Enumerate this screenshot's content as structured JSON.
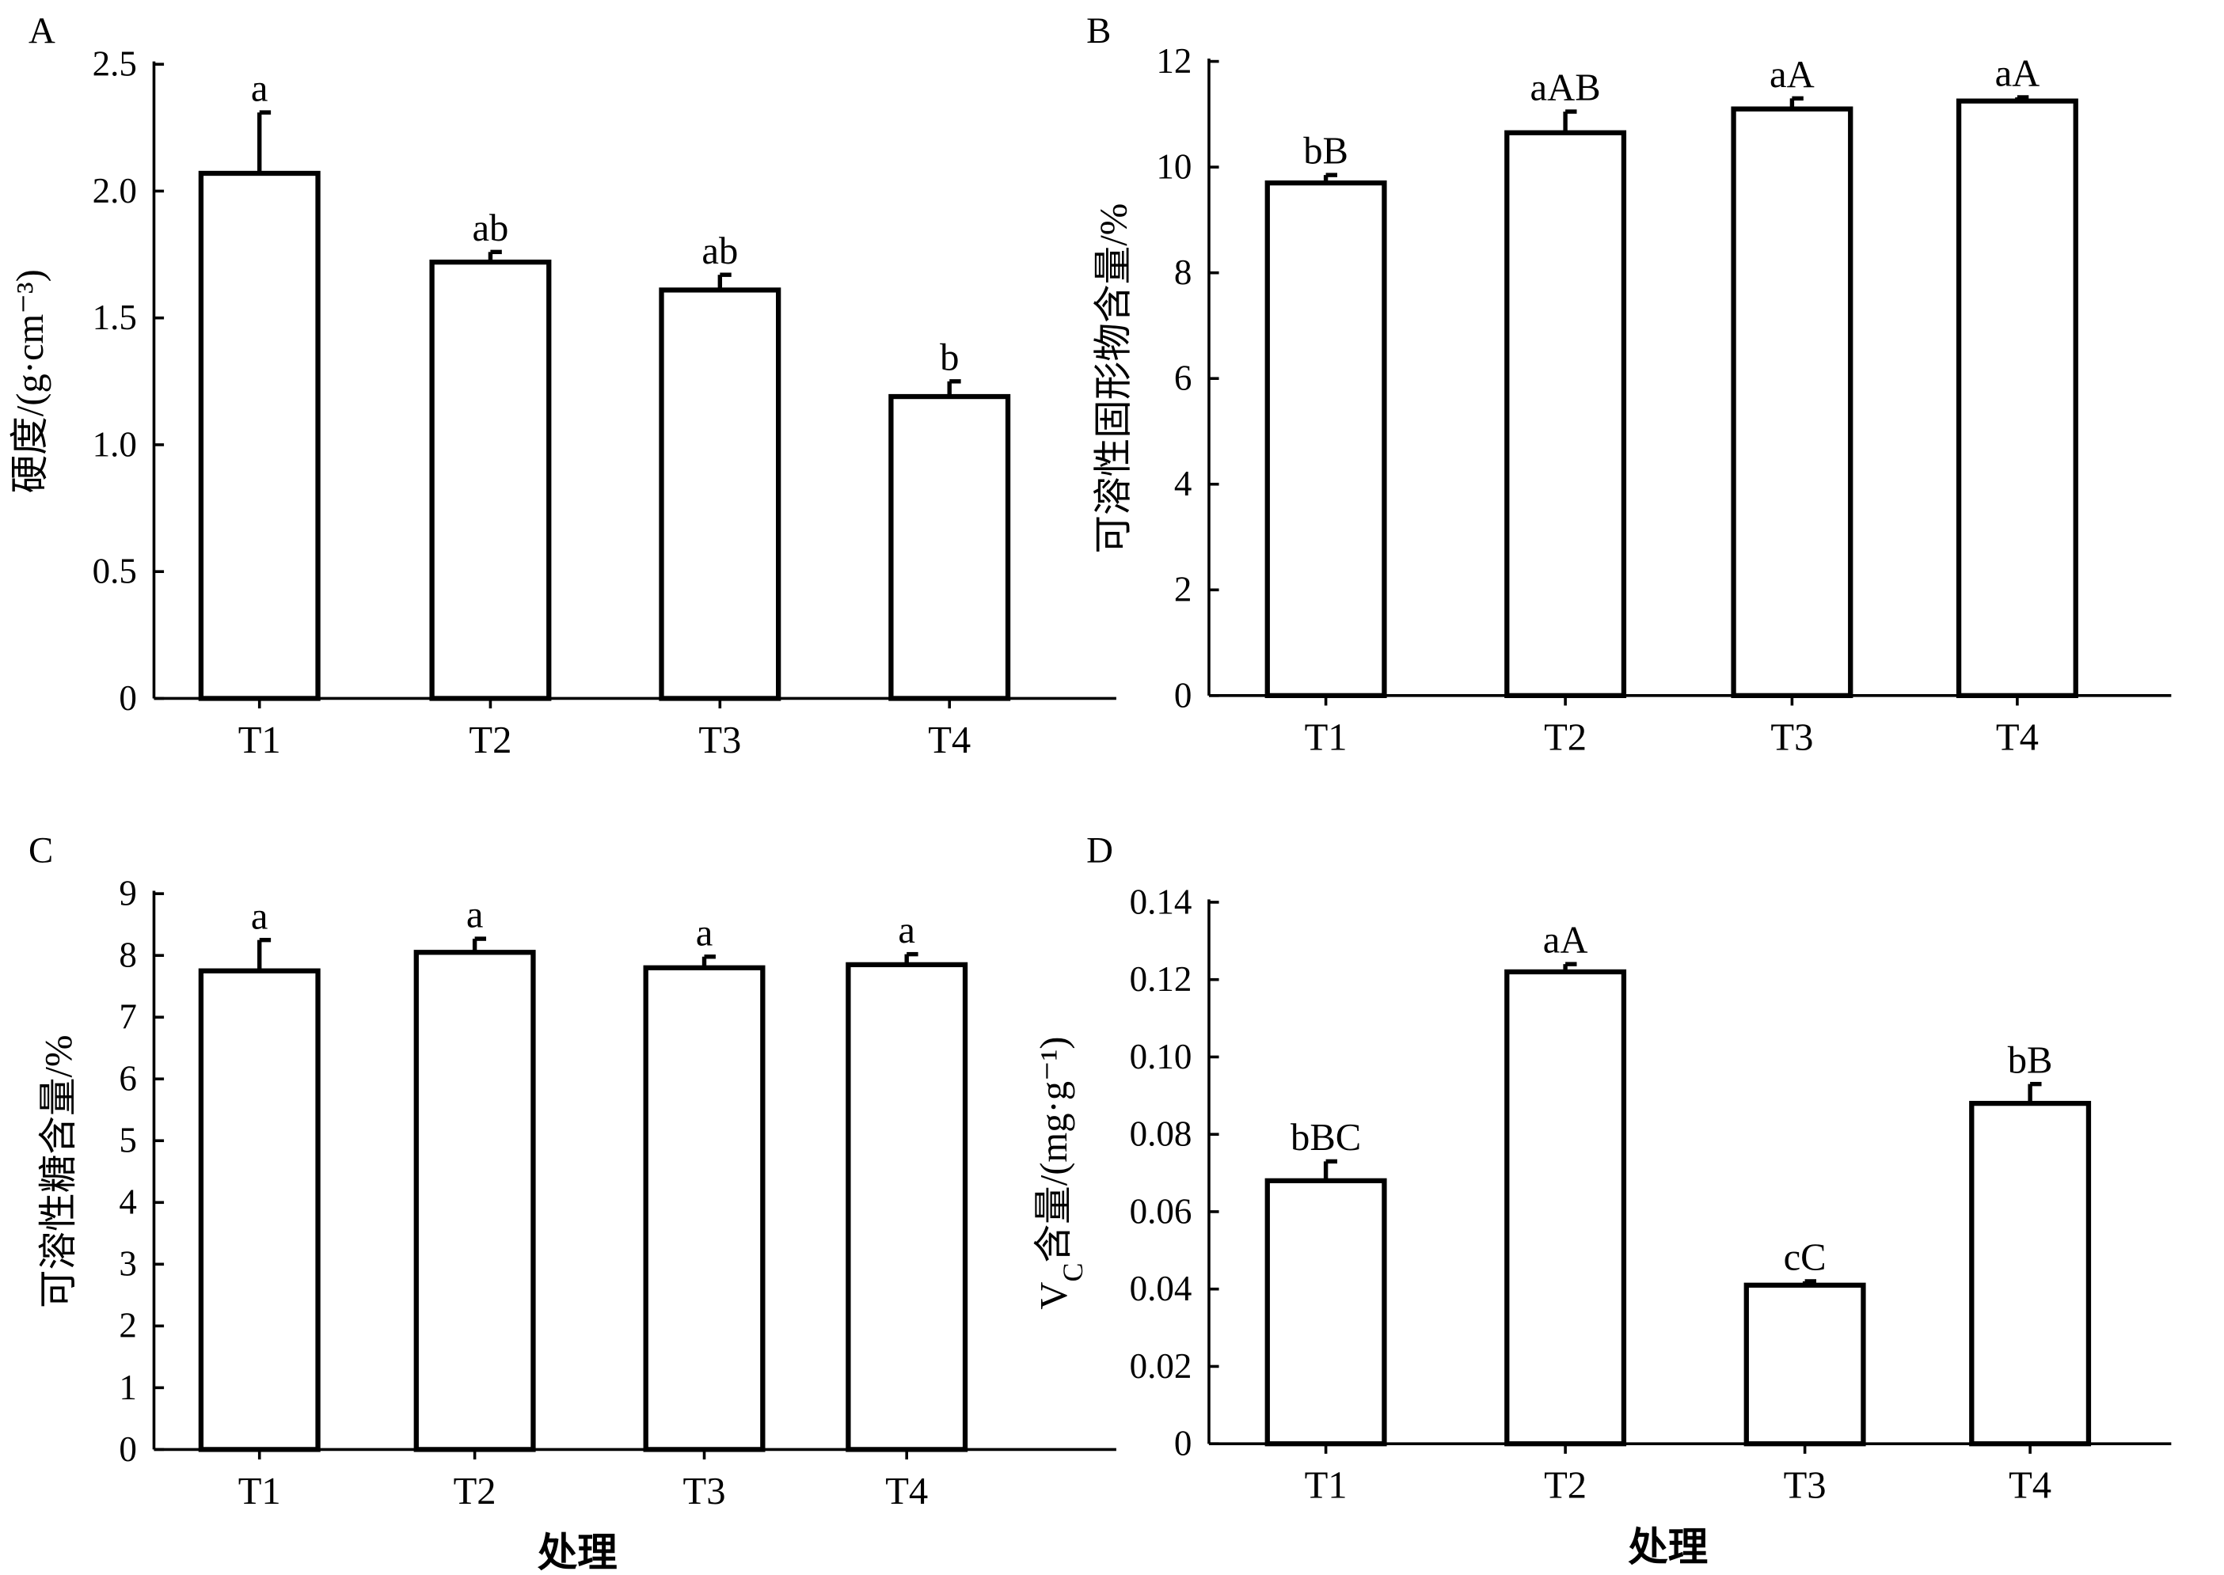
{
  "chart_data": [
    {
      "panel": "A",
      "type": "bar",
      "categories": [
        "T1",
        "T2",
        "T3",
        "T4"
      ],
      "values": [
        2.07,
        1.72,
        1.61,
        1.19
      ],
      "errors": [
        0.24,
        0.04,
        0.06,
        0.06
      ],
      "annotations": [
        "a",
        "ab",
        "ab",
        "b"
      ],
      "ylabel_parts": [
        {
          "t": "硬度/(g·cm⁻³)"
        }
      ],
      "xlabel": "",
      "ylim": [
        0,
        2.5
      ],
      "yticks": [
        "0",
        "0.5",
        "1.0",
        "1.5",
        "2.0",
        "2.5"
      ],
      "ytick_values": [
        0,
        0.5,
        1.0,
        1.5,
        2.0,
        2.5
      ]
    },
    {
      "panel": "B",
      "type": "bar",
      "categories": [
        "T1",
        "T2",
        "T3",
        "T4"
      ],
      "values": [
        9.7,
        10.65,
        11.1,
        11.25
      ],
      "errors": [
        0.15,
        0.4,
        0.2,
        0.07
      ],
      "annotations": [
        "bB",
        "aAB",
        "aA",
        "aA"
      ],
      "ylabel_parts": [
        {
          "t": "可溶性固形物含量/%"
        }
      ],
      "xlabel": "",
      "ylim": [
        0,
        12
      ],
      "yticks": [
        "0",
        "2",
        "4",
        "6",
        "8",
        "10",
        "12"
      ],
      "ytick_values": [
        0,
        2,
        4,
        6,
        8,
        10,
        12
      ]
    },
    {
      "panel": "C",
      "type": "bar",
      "categories": [
        "T1",
        "T2",
        "T3",
        "T4"
      ],
      "values": [
        7.75,
        8.05,
        7.8,
        7.85
      ],
      "errors": [
        0.5,
        0.22,
        0.18,
        0.17
      ],
      "annotations": [
        "a",
        "a",
        "a",
        "a"
      ],
      "ylabel_parts": [
        {
          "t": "可溶性糖含量/%"
        }
      ],
      "xlabel": "处理",
      "ylim": [
        0,
        9
      ],
      "yticks": [
        "0",
        "1",
        "2",
        "3",
        "4",
        "5",
        "6",
        "7",
        "8",
        "9"
      ],
      "ytick_values": [
        0,
        1,
        2,
        3,
        4,
        5,
        6,
        7,
        8,
        9
      ]
    },
    {
      "panel": "D",
      "type": "bar",
      "categories": [
        "T1",
        "T2",
        "T3",
        "T4"
      ],
      "values": [
        0.068,
        0.122,
        0.041,
        0.088
      ],
      "errors": [
        0.005,
        0.002,
        0.001,
        0.005
      ],
      "annotations": [
        "bBC",
        "aA",
        "cC",
        "bB"
      ],
      "ylabel_parts": [
        {
          "t": "V"
        },
        {
          "t": "C",
          "sub": true
        },
        {
          "t": "含量/(mg·g⁻¹)"
        }
      ],
      "xlabel": "处理",
      "ylim": [
        0,
        0.14
      ],
      "yticks": [
        "0",
        "0.02",
        "0.04",
        "0.06",
        "0.08",
        "0.10",
        "0.12",
        "0.14"
      ],
      "ytick_values": [
        0,
        0.02,
        0.04,
        0.06,
        0.08,
        0.1,
        0.12,
        0.14
      ]
    }
  ]
}
